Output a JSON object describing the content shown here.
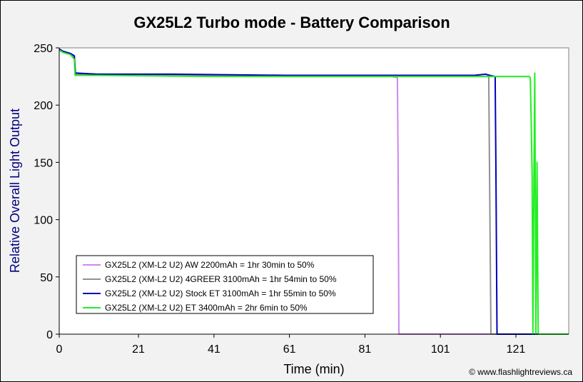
{
  "chart_data": {
    "type": "line",
    "title": "GX25L2 Turbo mode - Battery Comparison",
    "xlabel": "Time (min)",
    "ylabel": "Relative Overall Light Output",
    "xlim": [
      0,
      135
    ],
    "ylim": [
      0,
      250
    ],
    "xticks": [
      0,
      21,
      41,
      61,
      81,
      101,
      121
    ],
    "yticks": [
      0,
      50,
      100,
      150,
      200,
      250
    ],
    "grid": false,
    "legend_position": "bottom-left",
    "credit": "© www.flashlightreviews.ca",
    "series": [
      {
        "name": "GX25L2 (XM-L2 U2) AW 2200mAh = 1hr 30min to 50%",
        "color": "#cc88ee",
        "points": [
          [
            0,
            249
          ],
          [
            1,
            247
          ],
          [
            3,
            245
          ],
          [
            4,
            242
          ],
          [
            4.2,
            227
          ],
          [
            10,
            226
          ],
          [
            30,
            226
          ],
          [
            50,
            225
          ],
          [
            70,
            225
          ],
          [
            88,
            225
          ],
          [
            89.6,
            224
          ],
          [
            89.8,
            150
          ],
          [
            90,
            0
          ],
          [
            135,
            0
          ]
        ]
      },
      {
        "name": "GX25L2 (XM-L2 U2) 4GREER 3100mAh = 1hr 54min to 50%",
        "color": "#909090",
        "points": [
          [
            0,
            248
          ],
          [
            1,
            246
          ],
          [
            3,
            244
          ],
          [
            4,
            242
          ],
          [
            4.2,
            227
          ],
          [
            10,
            227
          ],
          [
            40,
            226
          ],
          [
            80,
            226
          ],
          [
            100,
            226
          ],
          [
            112,
            225
          ],
          [
            113.8,
            225
          ],
          [
            114,
            150
          ],
          [
            114.4,
            0
          ],
          [
            135,
            0
          ]
        ]
      },
      {
        "name": "GX25L2 (XM-L2 U2) Stock ET 3100mAh = 1hr 55min to 50%",
        "color": "#0000bb",
        "points": [
          [
            0,
            249
          ],
          [
            1,
            247
          ],
          [
            3,
            245
          ],
          [
            4,
            243
          ],
          [
            4.3,
            228
          ],
          [
            10,
            227
          ],
          [
            30,
            227
          ],
          [
            60,
            226
          ],
          [
            90,
            226
          ],
          [
            110,
            226
          ],
          [
            113,
            227
          ],
          [
            114,
            226
          ],
          [
            115.5,
            225
          ],
          [
            115.7,
            150
          ],
          [
            116,
            0
          ],
          [
            135,
            0
          ]
        ]
      },
      {
        "name": "GX25L2 (XM-L2 U2) ET 3400mAh = 2hr 6min to 50%",
        "color": "#22ee22",
        "points": [
          [
            0,
            248
          ],
          [
            1,
            246
          ],
          [
            3,
            244
          ],
          [
            4,
            240
          ],
          [
            4.2,
            226
          ],
          [
            10,
            226
          ],
          [
            40,
            225
          ],
          [
            80,
            225
          ],
          [
            110,
            225
          ],
          [
            120,
            225
          ],
          [
            124.5,
            225
          ],
          [
            124.8,
            224
          ],
          [
            125,
            195
          ],
          [
            125.3,
            140
          ],
          [
            125.5,
            0
          ],
          [
            125.8,
            140
          ],
          [
            126,
            228
          ],
          [
            126.3,
            0
          ],
          [
            126.6,
            150
          ],
          [
            126.9,
            0
          ],
          [
            135,
            0
          ]
        ]
      }
    ]
  }
}
